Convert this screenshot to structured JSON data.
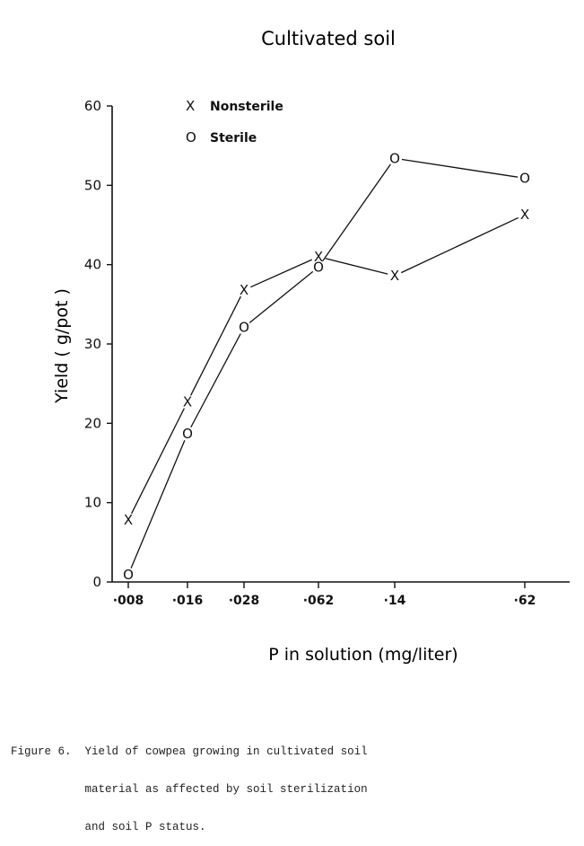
{
  "chart_data": {
    "type": "line",
    "title": "Cultivated soil",
    "xlabel": "P in solution (mg/liter)",
    "ylabel": "Yield ( g/pot )",
    "categories": [
      "·008",
      "·016",
      "·028",
      "·062",
      "·14",
      "·62"
    ],
    "yticks": [
      "0",
      "10",
      "20",
      "30",
      "40",
      "50",
      "60"
    ],
    "ylim": [
      0,
      60
    ],
    "legend": [
      {
        "marker": "X",
        "label": "Nonsterile"
      },
      {
        "marker": "O",
        "label": "Sterile"
      }
    ],
    "series": [
      {
        "name": "Nonsterile",
        "marker": "X",
        "values": [
          7.8,
          22.7,
          36.8,
          41.0,
          38.6,
          46.3
        ]
      },
      {
        "name": "Sterile",
        "marker": "O",
        "values": [
          0.9,
          18.7,
          32.1,
          39.7,
          53.4,
          50.9
        ]
      }
    ]
  },
  "caption": {
    "label": "Figure 6.",
    "lines": [
      "Yield of cowpea growing in cultivated soil",
      "material as affected by soil sterilization",
      "and soil P status."
    ]
  },
  "colors": {
    "ink": "#111111"
  }
}
